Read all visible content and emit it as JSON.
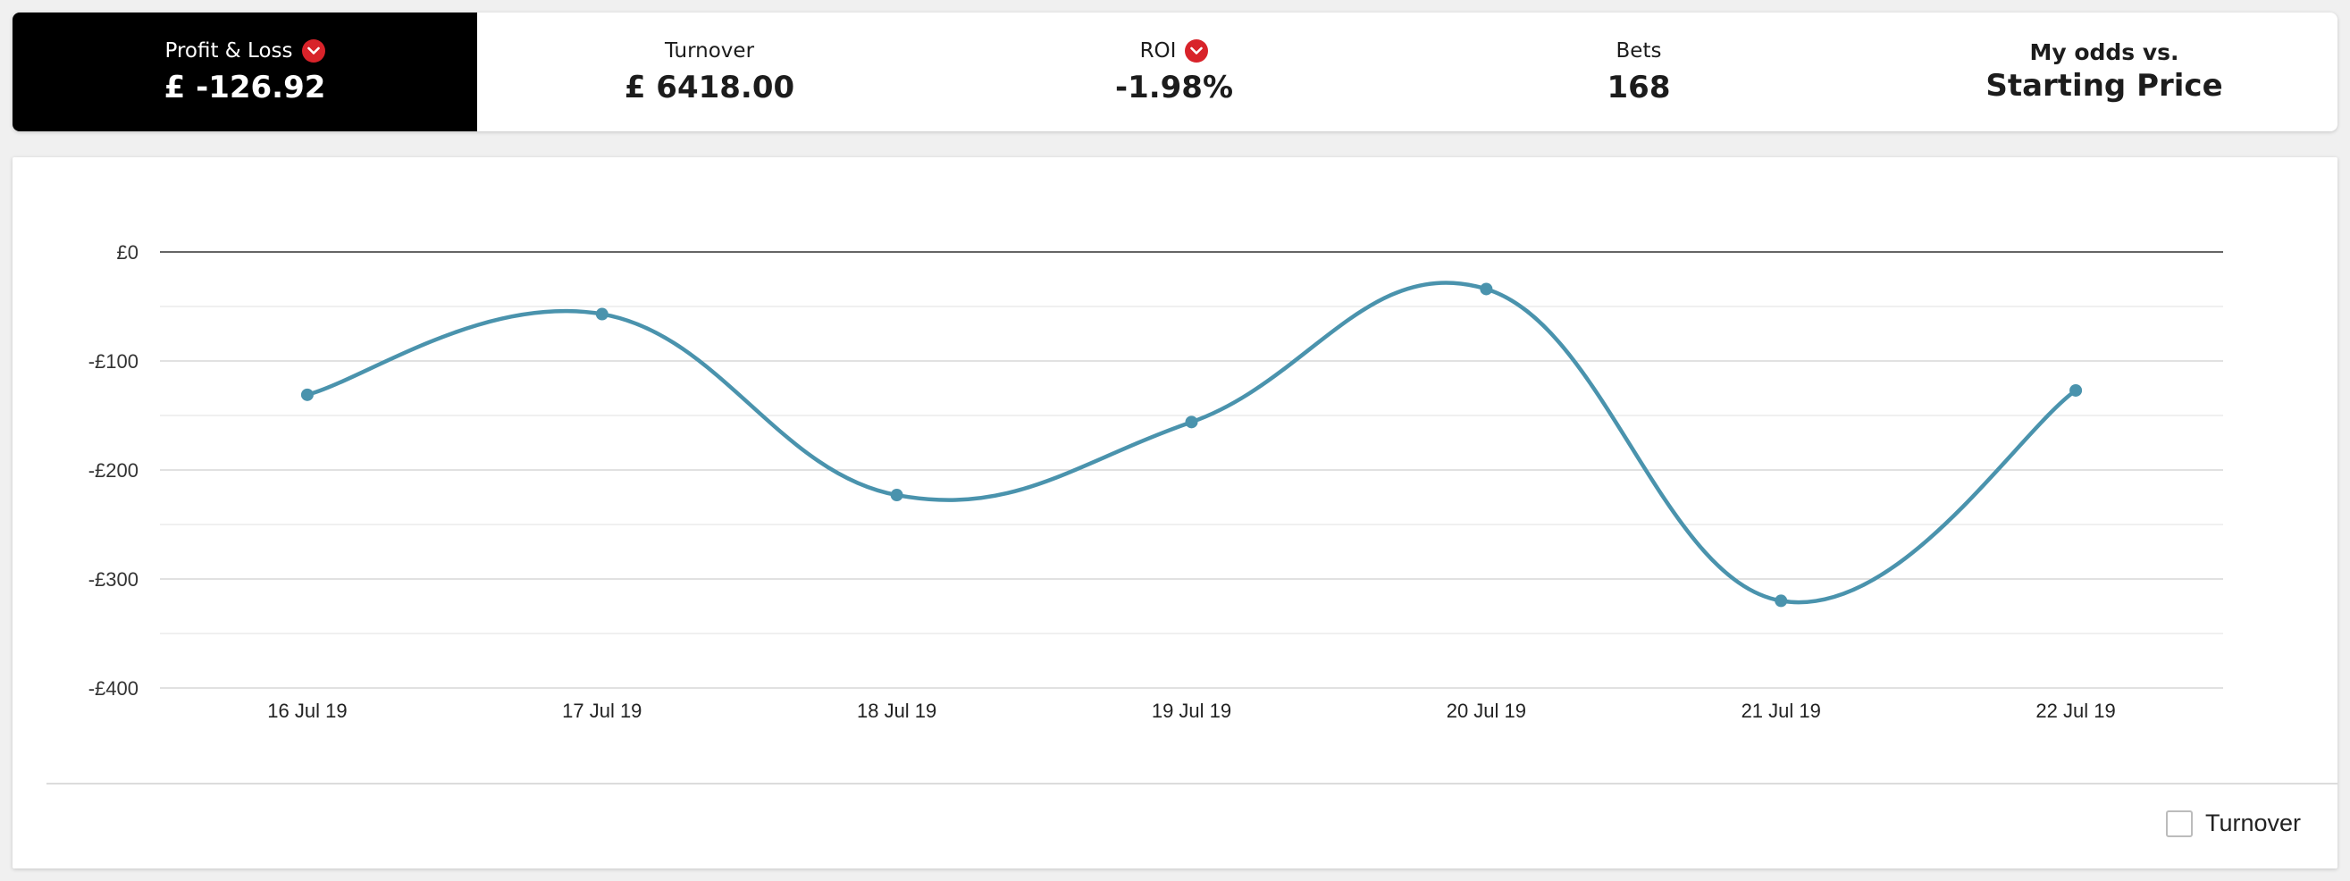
{
  "stats": {
    "profit_loss": {
      "label": "Profit & Loss",
      "value": "£ -126.92"
    },
    "turnover": {
      "label": "Turnover",
      "value": "£ 6418.00"
    },
    "roi": {
      "label": "ROI",
      "value": "-1.98%"
    },
    "bets": {
      "label": "Bets",
      "value": "168"
    },
    "comparison": {
      "label": "My odds vs.",
      "value": "Starting Price"
    }
  },
  "colors": {
    "line": "#4a93ad",
    "active_tab": "#000000",
    "caret": "#d8232a"
  },
  "legend": {
    "turnover_label": "Turnover",
    "turnover_checked": false
  },
  "chart_data": {
    "type": "line",
    "smooth": true,
    "categories": [
      "16 Jul 19",
      "17 Jul 19",
      "18 Jul 19",
      "19 Jul 19",
      "20 Jul 19",
      "21 Jul 19",
      "22 Jul 19"
    ],
    "series": [
      {
        "values": [
          -131,
          -57,
          -223,
          -156,
          -34,
          -320,
          -127
        ]
      }
    ],
    "ylim": [
      -400,
      0
    ],
    "yticks": [
      0,
      -100,
      -200,
      -300,
      -400
    ],
    "ytick_labels": [
      "£0",
      "-£100",
      "-£200",
      "-£300",
      "-£400"
    ],
    "grid": true,
    "xlabel": "",
    "ylabel": ""
  }
}
